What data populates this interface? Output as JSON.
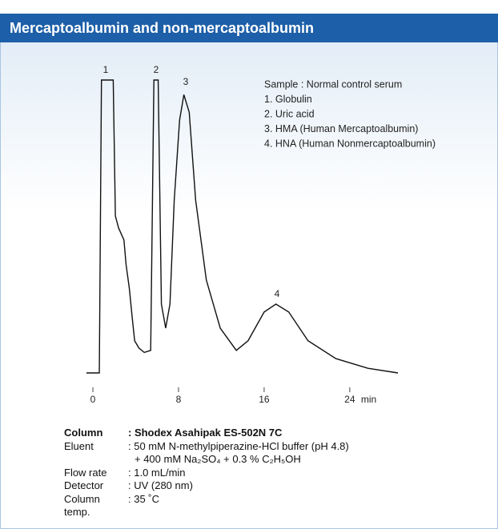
{
  "header": {
    "title": "Mercaptoalbumin and non-mercaptoalbumin"
  },
  "chart_data": {
    "type": "line",
    "x": [
      -0.6,
      0.6,
      0.8,
      1.9,
      2.1,
      2.4,
      2.9,
      3.1,
      3.4,
      3.7,
      3.9,
      4.3,
      4.8,
      5.4,
      5.7,
      6.1,
      6.4,
      6.8,
      7.2,
      7.6,
      8.1,
      8.5,
      9.0,
      9.6,
      10.6,
      11.9,
      13.4,
      14.5,
      16.0,
      17.1,
      18.3,
      20.1,
      22.7,
      25.7,
      28.5
    ],
    "series": [
      {
        "color": "#111111",
        "values": [
          0,
          0,
          100,
          100,
          53.6,
          49.5,
          45.4,
          37,
          29,
          18,
          11,
          8.5,
          7,
          7.7,
          100,
          100,
          23.5,
          15.3,
          23.5,
          59,
          86.3,
          95,
          89,
          59,
          31.7,
          15.3,
          7.7,
          11,
          20.8,
          23.5,
          20.8,
          11,
          4.9,
          1.6,
          0
        ]
      }
    ],
    "xlim": [
      -0.6,
      28.5
    ],
    "xticks": [
      0,
      8,
      16,
      24
    ],
    "x_label": "min",
    "ylim": [
      0,
      100
    ],
    "annotations": [
      "1",
      "2",
      "3",
      "4"
    ],
    "legend": [
      "Sample : Normal control serum",
      "1. Globulin",
      "2. Uric acid",
      "3. HMA (Human Mercaptoalbumin)",
      "4. HNA (Human Nonmercaptoalbumin)"
    ]
  },
  "conditions": [
    {
      "label": "Column",
      "value": ": Shodex Asahipak ES-502N 7C"
    },
    {
      "label": "Eluent",
      "value": ": 50 mM N-methylpiperazine-HCl buffer (pH 4.8)"
    },
    {
      "label": "",
      "value": "+ 400 mM Na₂SO₄ + 0.3 % C₂H₅OH"
    },
    {
      "label": "Flow rate",
      "value": ": 1.0 mL/min"
    },
    {
      "label": "Detector",
      "value": ": UV (280 nm)"
    },
    {
      "label": "Column temp.",
      "value": ": 35 ˚C"
    }
  ]
}
